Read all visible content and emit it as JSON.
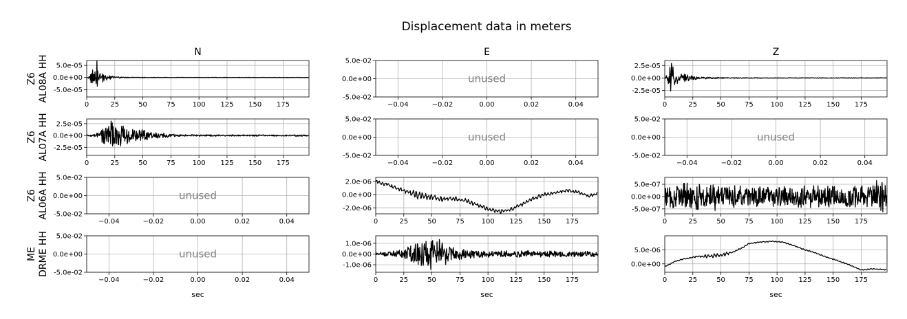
{
  "chart_data": {
    "type": "line",
    "title": "Displacement data in meters",
    "columns": [
      "N",
      "E",
      "Z"
    ],
    "rows": [
      {
        "line1": "Z6",
        "line2": "AL08A HH"
      },
      {
        "line1": "Z6",
        "line2": "AL07A HH"
      },
      {
        "line1": "Z6",
        "line2": "AL06A HH"
      },
      {
        "line1": "ME",
        "line2": "DRME HH"
      }
    ],
    "xlabel": "sec",
    "unused_label": "unused",
    "unused_xticks": [
      "−0.04",
      "−0.02",
      "0.00",
      "0.02",
      "0.04"
    ],
    "unused_yticks": [
      "5.0e-02",
      "0.0e+00",
      "-5.0e-02"
    ],
    "time_xticks": [
      "0",
      "25",
      "50",
      "75",
      "100",
      "125",
      "150",
      "175"
    ],
    "unused_xlim": [
      -0.05,
      0.05
    ],
    "unused_ylim": [
      -0.05,
      0.05
    ],
    "panels": [
      {
        "id": "AL08A-N",
        "status": "data",
        "ylim": [
          -8e-05,
          7e-05
        ],
        "yticks": [
          {
            "v": 5e-05,
            "label": "5.0e-05"
          },
          {
            "v": 0,
            "label": "0.0e+00"
          },
          {
            "v": -5e-05,
            "label": "-5.0e-05"
          }
        ],
        "xlim": [
          0,
          198
        ],
        "envelope": [
          [
            0,
            0.0
          ],
          [
            3,
            1e-05
          ],
          [
            5,
            5e-05
          ],
          [
            7,
            6.8e-05
          ],
          [
            9,
            -7.8e-05
          ],
          [
            11,
            3e-05
          ],
          [
            13,
            2.5e-05
          ],
          [
            15,
            1.6e-05
          ],
          [
            18,
            1e-05
          ],
          [
            22,
            6e-06
          ],
          [
            26,
            4e-06
          ],
          [
            30,
            2.5e-06
          ],
          [
            40,
            1.5e-06
          ],
          [
            60,
            1e-06
          ],
          [
            100,
            8e-07
          ],
          [
            150,
            8e-07
          ],
          [
            198,
            8e-07
          ]
        ]
      },
      {
        "id": "AL08A-E",
        "status": "unused"
      },
      {
        "id": "AL08A-Z",
        "status": "data",
        "ylim": [
          -3.8e-05,
          3.5e-05
        ],
        "yticks": [
          {
            "v": 2.5e-05,
            "label": "2.5e-05"
          },
          {
            "v": 0,
            "label": "0.0e+00"
          },
          {
            "v": -2.5e-05,
            "label": "-2.5e-05"
          }
        ],
        "xlim": [
          0,
          198
        ],
        "envelope": [
          [
            0,
            0.0
          ],
          [
            3,
            1e-05
          ],
          [
            5,
            2.5e-05
          ],
          [
            7,
            3.4e-05
          ],
          [
            9,
            -3.4e-05
          ],
          [
            11,
            1.4e-05
          ],
          [
            14,
            1.1e-05
          ],
          [
            17,
            8e-06
          ],
          [
            20,
            6e-06
          ],
          [
            25,
            4e-06
          ],
          [
            30,
            2.5e-06
          ],
          [
            40,
            1.5e-06
          ],
          [
            60,
            8e-07
          ],
          [
            100,
            6e-07
          ],
          [
            198,
            6e-07
          ]
        ]
      },
      {
        "id": "AL07A-N",
        "status": "data",
        "ylim": [
          -4.2e-05,
          3.5e-05
        ],
        "yticks": [
          {
            "v": 2.5e-05,
            "label": "2.5e-05"
          },
          {
            "v": 0,
            "label": "0.0e+00"
          },
          {
            "v": -2.5e-05,
            "label": "-2.5e-05"
          }
        ],
        "xlim": [
          0,
          198
        ],
        "envelope": [
          [
            0,
            1.5e-06
          ],
          [
            5,
            2e-06
          ],
          [
            8,
            3e-06
          ],
          [
            10,
            8e-06
          ],
          [
            12,
            1.2e-05
          ],
          [
            15,
            1.6e-05
          ],
          [
            18,
            2.2e-05
          ],
          [
            20,
            3.3e-05
          ],
          [
            22,
            3e-05
          ],
          [
            25,
            2.8e-05
          ],
          [
            30,
            2.2e-05
          ],
          [
            35,
            1.8e-05
          ],
          [
            40,
            1.5e-05
          ],
          [
            45,
            1.3e-05
          ],
          [
            50,
            1.2e-05
          ],
          [
            55,
            8e-06
          ],
          [
            60,
            6e-06
          ],
          [
            65,
            5e-06
          ],
          [
            70,
            4.5e-06
          ],
          [
            75,
            3e-06
          ],
          [
            90,
            2e-06
          ],
          [
            120,
            1.5e-06
          ],
          [
            150,
            1.5e-06
          ],
          [
            198,
            1.5e-06
          ]
        ]
      },
      {
        "id": "AL07A-E",
        "status": "unused"
      },
      {
        "id": "AL07A-Z",
        "status": "unused"
      },
      {
        "id": "AL06A-N",
        "status": "unused"
      },
      {
        "id": "AL06A-E",
        "status": "data",
        "ylim": [
          -2.9e-06,
          2.6e-06
        ],
        "yticks": [
          {
            "v": 2e-06,
            "label": "2.0e-06"
          },
          {
            "v": 0,
            "label": "0.0e+00"
          },
          {
            "v": -2e-06,
            "label": "-2.0e-06"
          }
        ],
        "xlim": [
          0,
          198
        ],
        "trend": [
          [
            0,
            2e-06
          ],
          [
            10,
            1.5e-06
          ],
          [
            20,
            9e-07
          ],
          [
            30,
            3e-07
          ],
          [
            40,
            -2e-07
          ],
          [
            50,
            -4e-07
          ],
          [
            60,
            -7e-07
          ],
          [
            70,
            -6e-07
          ],
          [
            80,
            -9e-07
          ],
          [
            90,
            -1.5e-06
          ],
          [
            100,
            -2.2e-06
          ],
          [
            110,
            -2.6e-06
          ],
          [
            120,
            -2.3e-06
          ],
          [
            130,
            -1.5e-06
          ],
          [
            140,
            -6e-07
          ],
          [
            150,
            0.0
          ],
          [
            160,
            3e-07
          ],
          [
            170,
            6e-07
          ],
          [
            180,
            4e-07
          ],
          [
            190,
            -2e-07
          ],
          [
            198,
            2e-07
          ]
        ],
        "noise": [
          [
            0,
            2e-07
          ],
          [
            20,
            3e-07
          ],
          [
            35,
            5e-07
          ],
          [
            50,
            4e-07
          ],
          [
            60,
            3e-07
          ],
          [
            198,
            2e-07
          ]
        ]
      },
      {
        "id": "AL06A-Z",
        "status": "data",
        "ylim": [
          -7e-07,
          7.8e-07
        ],
        "yticks": [
          {
            "v": 5e-07,
            "label": "5.0e-07"
          },
          {
            "v": 0,
            "label": "0.0e+00"
          },
          {
            "v": -5e-07,
            "label": "-5.0e-07"
          }
        ],
        "xlim": [
          0,
          198
        ],
        "envelope": [
          [
            0,
            3.5e-07
          ],
          [
            10,
            5e-07
          ],
          [
            20,
            5.5e-07
          ],
          [
            35,
            5e-07
          ],
          [
            50,
            6e-07
          ],
          [
            60,
            4.5e-07
          ],
          [
            80,
            4e-07
          ],
          [
            100,
            4e-07
          ],
          [
            130,
            4.5e-07
          ],
          [
            160,
            4e-07
          ],
          [
            180,
            4.5e-07
          ],
          [
            193,
            7.5e-07
          ],
          [
            198,
            3e-07
          ]
        ]
      },
      {
        "id": "DRME-N",
        "status": "unused"
      },
      {
        "id": "DRME-E",
        "status": "data",
        "ylim": [
          -1.7e-06,
          1.7e-06
        ],
        "yticks": [
          {
            "v": 1e-06,
            "label": "1.0e-06"
          },
          {
            "v": 0,
            "label": "0.0e+00"
          },
          {
            "v": -1e-06,
            "label": "-1.0e-06"
          }
        ],
        "xlim": [
          0,
          198
        ],
        "envelope": [
          [
            0,
            1.5e-07
          ],
          [
            10,
            2.5e-07
          ],
          [
            20,
            3e-07
          ],
          [
            25,
            6e-07
          ],
          [
            35,
            9e-07
          ],
          [
            45,
            1.2e-06
          ],
          [
            52,
            1.6e-06
          ],
          [
            56,
            1.4e-06
          ],
          [
            62,
            1e-06
          ],
          [
            70,
            6e-07
          ],
          [
            80,
            4e-07
          ],
          [
            100,
            3e-07
          ],
          [
            140,
            3e-07
          ],
          [
            170,
            2.5e-07
          ],
          [
            198,
            2.5e-07
          ]
        ]
      },
      {
        "id": "DRME-Z",
        "status": "data",
        "ylim": [
          -3e-06,
          1e-05
        ],
        "yticks": [
          {
            "v": 5e-06,
            "label": "5.0e-06"
          },
          {
            "v": 0,
            "label": "0.0e+00"
          }
        ],
        "xlim": [
          0,
          198
        ],
        "trend": [
          [
            0,
            -1e-06
          ],
          [
            5,
            0.0
          ],
          [
            10,
            1e-06
          ],
          [
            20,
            2e-06
          ],
          [
            30,
            2.6e-06
          ],
          [
            40,
            2.8e-06
          ],
          [
            50,
            3.1e-06
          ],
          [
            60,
            4e-06
          ],
          [
            70,
            6e-06
          ],
          [
            75,
            7.2e-06
          ],
          [
            85,
            7.8e-06
          ],
          [
            95,
            8e-06
          ],
          [
            105,
            7.8e-06
          ],
          [
            115,
            6.5e-06
          ],
          [
            125,
            5e-06
          ],
          [
            135,
            3.8e-06
          ],
          [
            145,
            2.3e-06
          ],
          [
            155,
            1e-06
          ],
          [
            165,
            -5e-07
          ],
          [
            175,
            -2.2e-06
          ],
          [
            185,
            -1.8e-06
          ],
          [
            198,
            -2.1e-06
          ]
        ],
        "noise": [
          [
            0,
            1.5e-07
          ],
          [
            25,
            2e-07
          ],
          [
            40,
            6e-07
          ],
          [
            55,
            6e-07
          ],
          [
            60,
            2e-07
          ],
          [
            198,
            1.5e-07
          ]
        ]
      }
    ]
  }
}
